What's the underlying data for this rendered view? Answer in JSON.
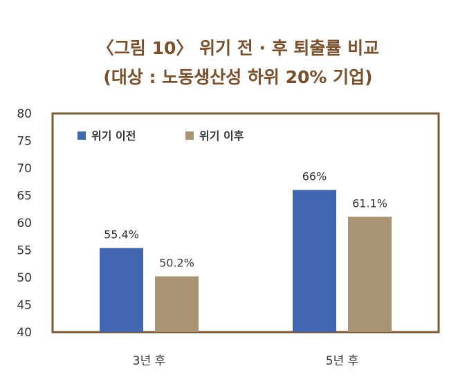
{
  "title_line1": "〈그림 10〉 위기 전 · 후 퇴출률 비교",
  "title_line2": "(대상 : 노동생산성 하위 20% 기업)",
  "chart_data": {
    "type": "bar",
    "categories": [
      "3년 후",
      "5년 후"
    ],
    "series": [
      {
        "name": "위기 이전",
        "values": [
          55.4,
          66
        ],
        "labels": [
          "55.4%",
          "66%"
        ],
        "color": "#4267b2"
      },
      {
        "name": "위기 이후",
        "values": [
          50.2,
          61.1
        ],
        "labels": [
          "50.2%",
          "61.1%"
        ],
        "color": "#a89373"
      }
    ],
    "ylim": [
      40,
      80
    ],
    "yticks": [
      "80",
      "75",
      "70",
      "65",
      "60",
      "55",
      "50",
      "45",
      "40"
    ],
    "legend_position": "top-left",
    "frame_color": "#7a5a32"
  }
}
